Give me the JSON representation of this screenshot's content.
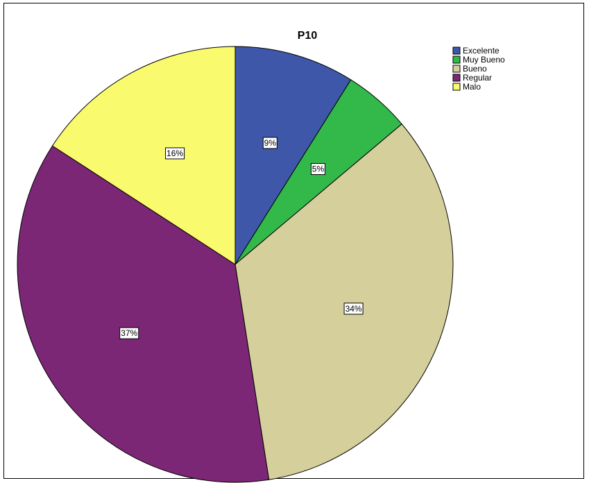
{
  "chart_data": {
    "type": "pie",
    "title": "P10",
    "categories": [
      "Excelente",
      "Muy Bueno",
      "Bueno",
      "Regular",
      "Malo"
    ],
    "values": [
      9,
      5,
      34,
      37,
      16
    ],
    "labels": [
      "9%",
      "5%",
      "34%",
      "37%",
      "16%"
    ],
    "colors": [
      "#3e57a9",
      "#33b84a",
      "#d4cf9b",
      "#7c2676",
      "#fafa6e"
    ],
    "start_angle_deg": 0,
    "direction": "clockwise",
    "legend": {
      "placement": "top-right"
    }
  }
}
